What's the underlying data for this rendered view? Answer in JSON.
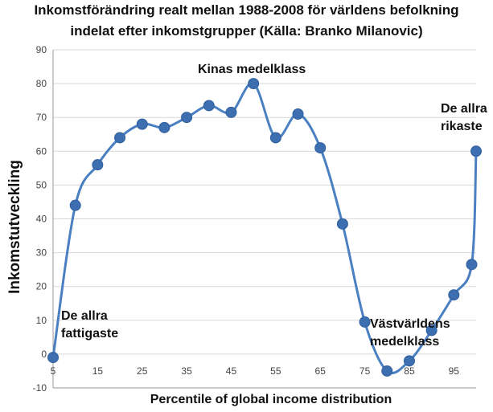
{
  "chart_data": {
    "type": "line",
    "title_lines": [
      "Inkomstförändring realt mellan 1988-2008 för världens befolkning",
      "indelat efter inkomstgrupper (Källa: Branko Milanovic)"
    ],
    "xlabel": "Percentile of global income distribution",
    "ylabel": "Inkomstutveckling",
    "xlim": [
      5,
      100
    ],
    "ylim": [
      -10,
      90
    ],
    "x_ticks": [
      5,
      15,
      25,
      35,
      45,
      55,
      65,
      75,
      85,
      95
    ],
    "y_ticks": [
      -10,
      0,
      10,
      20,
      30,
      40,
      50,
      60,
      70,
      80,
      90
    ],
    "grid": "horizontal",
    "line_color": "#4a7fc1",
    "marker_color": "#3d6fb0",
    "points": [
      {
        "x": 5,
        "y": -1
      },
      {
        "x": 10,
        "y": 44
      },
      {
        "x": 15,
        "y": 56
      },
      {
        "x": 20,
        "y": 64
      },
      {
        "x": 25,
        "y": 68
      },
      {
        "x": 30,
        "y": 67
      },
      {
        "x": 35,
        "y": 70
      },
      {
        "x": 40,
        "y": 73.5
      },
      {
        "x": 45,
        "y": 71.5
      },
      {
        "x": 50,
        "y": 80
      },
      {
        "x": 55,
        "y": 64
      },
      {
        "x": 60,
        "y": 71
      },
      {
        "x": 65,
        "y": 61
      },
      {
        "x": 70,
        "y": 38.5
      },
      {
        "x": 75,
        "y": 9.5
      },
      {
        "x": 80,
        "y": -5
      },
      {
        "x": 85,
        "y": -2
      },
      {
        "x": 90,
        "y": 7
      },
      {
        "x": 95,
        "y": 17.5
      },
      {
        "x": 99,
        "y": 26.5
      },
      {
        "x": 100,
        "y": 60
      }
    ],
    "annotations": [
      {
        "name": "annotation-kinas-medelklass",
        "lines": [
          "Kinas medelklass"
        ]
      },
      {
        "name": "annotation-de-allra-rikaste",
        "lines": [
          "De allra",
          "rikaste"
        ]
      },
      {
        "name": "annotation-de-allra-fattigaste",
        "lines": [
          "De allra",
          "fattigaste"
        ]
      },
      {
        "name": "annotation-vastvarldens-medelklass",
        "lines": [
          "Västvärldens",
          "medelklass"
        ]
      }
    ]
  }
}
